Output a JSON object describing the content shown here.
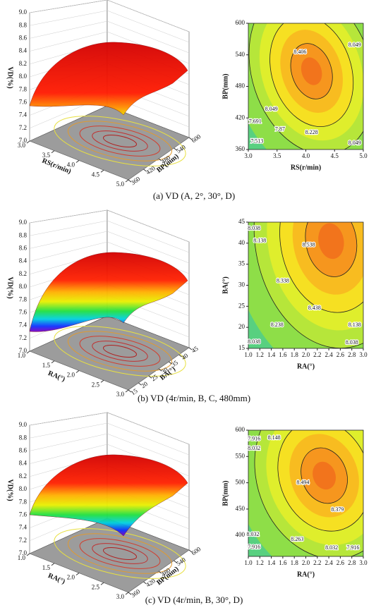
{
  "panels": [
    {
      "caption": "(a) VD (A, 2°, 30°, D)",
      "surface": {
        "type": "surface",
        "zlabel": "VD(%)",
        "xlabel": "RS(r/min)",
        "ylabel": "BP(mm)",
        "zlim": [
          7,
          9
        ],
        "zticks": [
          {
            "value": 7,
            "label": "7.0"
          },
          7.2,
          7.4,
          7.6,
          7.8,
          {
            "value": 8,
            "label": "8.0"
          },
          8.2,
          8.4,
          8.6,
          8.8,
          {
            "value": 9,
            "label": "9.0"
          }
        ],
        "xlim": [
          3,
          5
        ],
        "xticks": [
          {
            "value": 3,
            "label": "3.0"
          },
          3.5,
          {
            "value": 4,
            "label": "4.0"
          },
          4.5,
          {
            "value": 5,
            "label": "5.0"
          }
        ],
        "ylim": [
          360,
          600
        ],
        "yticks": [
          360,
          420,
          480,
          540,
          600
        ]
      },
      "contour": {
        "type": "contour",
        "xlabel": "RS(r/min)",
        "ylabel": "BP(mm)",
        "xlim": [
          3,
          5
        ],
        "xticks": [
          {
            "value": 3,
            "label": "3.0"
          },
          3.5,
          {
            "value": 4,
            "label": "4.0"
          },
          4.5,
          {
            "value": 5,
            "label": "5.0"
          }
        ],
        "ylim": [
          360,
          600
        ],
        "yticks": [
          360,
          420,
          480,
          540,
          600
        ],
        "labels": [
          {
            "value": 8.406,
            "x": 3.9,
            "y": 545
          },
          {
            "value": 8.049,
            "x": 4.85,
            "y": 558
          },
          {
            "value": 8.049,
            "x": 3.4,
            "y": 436
          },
          {
            "value": 7.691,
            "x": 3.12,
            "y": 413
          },
          {
            "value": 7.87,
            "x": 3.55,
            "y": 398
          },
          {
            "value": 8.228,
            "x": 4.1,
            "y": 392
          },
          {
            "value": 7.513,
            "x": 3.15,
            "y": 375
          },
          {
            "value": 8.049,
            "x": 4.85,
            "y": 372
          }
        ]
      }
    },
    {
      "caption": "(b) VD (4r/min, B, C, 480mm)",
      "surface": {
        "type": "surface",
        "zlabel": "VD(%)",
        "xlabel": "RA(°)",
        "ylabel": "BA(°)",
        "zlim": [
          7,
          9
        ],
        "zticks": [
          {
            "value": 7,
            "label": "7.0"
          },
          7.2,
          7.4,
          7.6,
          7.8,
          {
            "value": 8,
            "label": "8.0"
          },
          8.2,
          8.4,
          8.6,
          8.8,
          {
            "value": 9,
            "label": "9.0"
          }
        ],
        "xlim": [
          1,
          3
        ],
        "xticks": [
          {
            "value": 1,
            "label": "1.0"
          },
          1.5,
          {
            "value": 2,
            "label": "2.0"
          },
          2.5,
          {
            "value": 3,
            "label": "3.0"
          }
        ],
        "ylim": [
          15,
          45
        ],
        "yticks": [
          15,
          20,
          25,
          30,
          35,
          40,
          45
        ]
      },
      "contour": {
        "type": "contour",
        "xlabel": "RA(°)",
        "ylabel": "BA(°)",
        "xlim": [
          1,
          3
        ],
        "xticks": [
          {
            "value": 1,
            "label": "1.0"
          },
          1.2,
          1.4,
          1.6,
          1.8,
          {
            "value": 2,
            "label": "2.0"
          },
          2.2,
          2.4,
          2.6,
          2.8,
          {
            "value": 3,
            "label": "3.0"
          }
        ],
        "ylim": [
          15,
          45
        ],
        "yticks": [
          15,
          20,
          25,
          30,
          35,
          40,
          45
        ],
        "labels": [
          {
            "value": 8.038,
            "x": 1.1,
            "y": 43.5
          },
          {
            "value": 8.138,
            "x": 1.2,
            "y": 40.5
          },
          {
            "value": 8.538,
            "x": 2.05,
            "y": 39.5
          },
          {
            "value": 8.338,
            "x": 1.6,
            "y": 31
          },
          {
            "value": 8.438,
            "x": 2.15,
            "y": 24.5
          },
          {
            "value": 8.238,
            "x": 1.5,
            "y": 20.5
          },
          {
            "value": 8.138,
            "x": 2.85,
            "y": 20.5
          },
          {
            "value": 8.038,
            "x": 1.1,
            "y": 16.5
          },
          {
            "value": 8.038,
            "x": 2.8,
            "y": 16.3
          }
        ]
      }
    },
    {
      "caption": "(c) VD (4r/min, B, 30°, D)",
      "surface": {
        "type": "surface",
        "zlabel": "VD(%)",
        "xlabel": "RA(°)",
        "ylabel": "BP(mm)",
        "zlim": [
          7,
          9
        ],
        "zticks": [
          {
            "value": 7,
            "label": "7.0"
          },
          7.2,
          7.4,
          7.6,
          7.8,
          {
            "value": 8,
            "label": "8.0"
          },
          8.2,
          8.4,
          8.6,
          8.8,
          {
            "value": 9,
            "label": "9.0"
          }
        ],
        "xlim": [
          1,
          3
        ],
        "xticks": [
          {
            "value": 1,
            "label": "1.0"
          },
          1.5,
          {
            "value": 2,
            "label": "2.0"
          },
          2.5,
          {
            "value": 3,
            "label": "3.0"
          }
        ],
        "ylim": [
          360,
          600
        ],
        "yticks": [
          360,
          420,
          480,
          540,
          600
        ]
      },
      "contour": {
        "type": "contour",
        "xlabel": "RA(°)",
        "ylabel": "BP(mm)",
        "xlim": [
          1,
          3
        ],
        "xticks": [
          {
            "value": 1,
            "label": "1.0"
          },
          1.2,
          1.4,
          1.6,
          1.8,
          {
            "value": 2,
            "label": "2.0"
          },
          2.2,
          2.4,
          2.6,
          2.8,
          {
            "value": 3,
            "label": "3.0"
          }
        ],
        "ylim": [
          360,
          600
        ],
        "yticks": [
          400,
          450,
          500,
          550,
          600
        ],
        "labels": [
          {
            "value": 7.916,
            "x": 1.1,
            "y": 583
          },
          {
            "value": 8.148,
            "x": 1.45,
            "y": 585
          },
          {
            "value": 8.032,
            "x": 1.1,
            "y": 565
          },
          {
            "value": 8.494,
            "x": 1.95,
            "y": 500
          },
          {
            "value": 8.379,
            "x": 2.55,
            "y": 448
          },
          {
            "value": 8.032,
            "x": 1.08,
            "y": 401
          },
          {
            "value": 8.263,
            "x": 1.85,
            "y": 392
          },
          {
            "value": 7.916,
            "x": 1.1,
            "y": 377
          },
          {
            "value": 8.032,
            "x": 2.45,
            "y": 376
          },
          {
            "value": 7.916,
            "x": 2.82,
            "y": 376
          }
        ]
      }
    }
  ]
}
